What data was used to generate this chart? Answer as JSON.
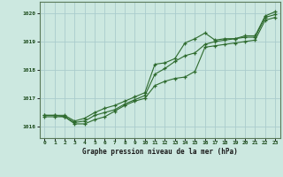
{
  "background_color": "#cce8e0",
  "plot_bg_color": "#cce8e0",
  "grid_color": "#aacccc",
  "line_color": "#2d6a2d",
  "spine_color": "#5a7a5a",
  "title": "Graphe pression niveau de la mer (hPa)",
  "ylim": [
    1015.6,
    1020.4
  ],
  "yticks": [
    1016,
    1017,
    1018,
    1019,
    1020
  ],
  "xlim": [
    -0.5,
    23.5
  ],
  "xticks": [
    0,
    1,
    2,
    3,
    4,
    5,
    6,
    7,
    8,
    9,
    10,
    11,
    12,
    13,
    14,
    15,
    16,
    17,
    18,
    19,
    20,
    21,
    22,
    23
  ],
  "series1": [
    1016.4,
    1016.4,
    1016.4,
    1016.2,
    1016.3,
    1016.5,
    1016.65,
    1016.75,
    1016.9,
    1017.05,
    1017.2,
    1018.2,
    1018.25,
    1018.4,
    1018.95,
    1019.1,
    1019.3,
    1019.05,
    1019.1,
    1019.1,
    1019.2,
    1019.2,
    1019.9,
    1020.05
  ],
  "series2": [
    1016.4,
    1016.4,
    1016.35,
    1016.15,
    1016.2,
    1016.4,
    1016.5,
    1016.6,
    1016.8,
    1016.95,
    1017.1,
    1017.85,
    1018.05,
    1018.3,
    1018.5,
    1018.6,
    1018.9,
    1019.0,
    1019.05,
    1019.1,
    1019.15,
    1019.15,
    1019.85,
    1019.95
  ],
  "series3": [
    1016.35,
    1016.35,
    1016.35,
    1016.1,
    1016.1,
    1016.25,
    1016.35,
    1016.55,
    1016.75,
    1016.9,
    1017.0,
    1017.45,
    1017.6,
    1017.7,
    1017.75,
    1017.95,
    1018.8,
    1018.85,
    1018.9,
    1018.95,
    1019.0,
    1019.05,
    1019.75,
    1019.85
  ]
}
